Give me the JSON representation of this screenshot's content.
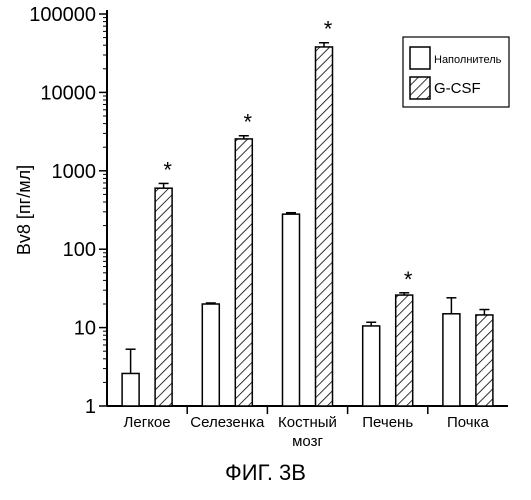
{
  "chart_data": {
    "type": "bar",
    "ylabel": "Bv8 [пг/мл]",
    "yscale": "log",
    "ylim": [
      1,
      100000
    ],
    "yticks": [
      1,
      10,
      100,
      1000,
      10000,
      100000
    ],
    "ytick_labels": [
      "1",
      "10",
      "100",
      "1000",
      "10000",
      "100000"
    ],
    "categories": [
      "Легкое",
      "Селезенка",
      "Костный мозг",
      "Печень",
      "Почка"
    ],
    "category_labels": [
      [
        "Легкое"
      ],
      [
        "Селезенка"
      ],
      [
        "Костный",
        "мозг"
      ],
      [
        "Печень"
      ],
      [
        "Почка"
      ]
    ],
    "series": [
      {
        "name": "Наполнитель",
        "pattern": "open",
        "values": [
          2.6,
          20,
          280,
          10.5,
          15
        ],
        "errors": [
          2.7,
          0.6,
          12,
          1.2,
          9
        ]
      },
      {
        "name": "G-CSF",
        "pattern": "hatched",
        "values": [
          600,
          2550,
          38000,
          26,
          14.5
        ],
        "errors": [
          90,
          250,
          5000,
          1.8,
          2.5
        ]
      }
    ],
    "significance": [
      "*",
      "*",
      "*",
      "*",
      ""
    ],
    "legend_position": "top-right",
    "grid": false
  },
  "caption": "ФИГ. 3B"
}
